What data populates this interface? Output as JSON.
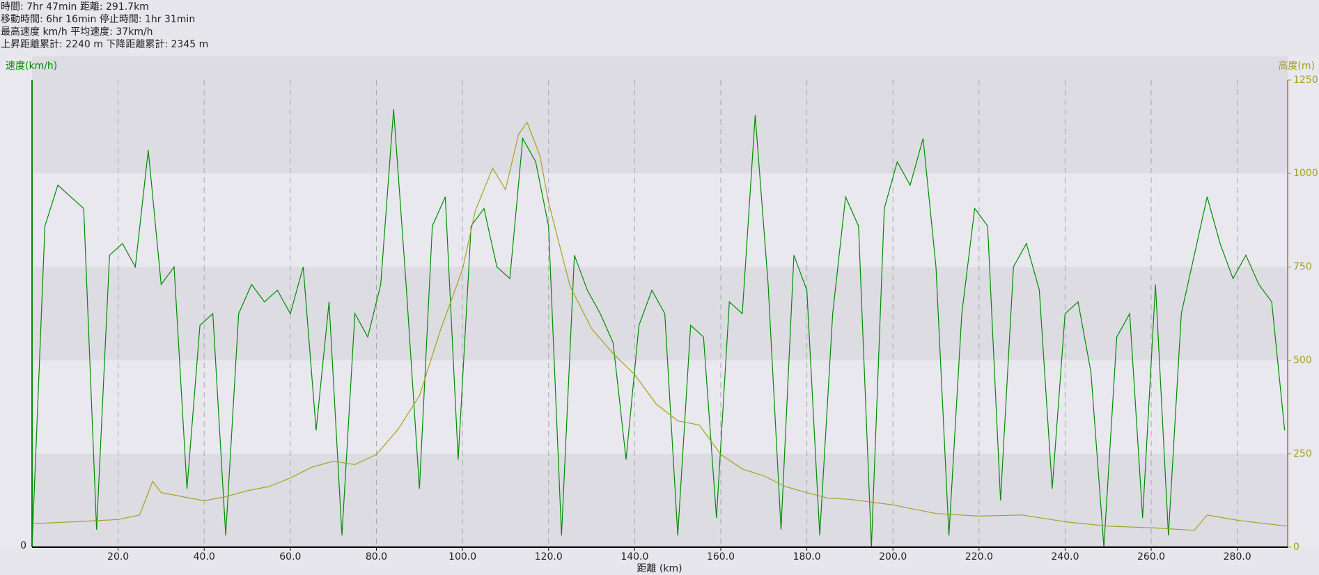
{
  "header": {
    "lines": [
      "時間: 7hr 47min  距離: 291.7km",
      "移動時間: 6hr 16min  停止時間: 1hr 31min",
      "最高速度     km/h  平均速度: 37km/h",
      "上昇距離累計: 2240 m  下降距離累計: 2345 m"
    ]
  },
  "chart_data": {
    "type": "line",
    "ylabel": "速度(km/h)",
    "y2label": "高度(m)",
    "xlabel": "距離 (km)",
    "xlim": [
      0,
      291.7
    ],
    "xticks": [
      {
        "value": 20,
        "label": "20.0"
      },
      {
        "value": 40,
        "label": "40.0"
      },
      {
        "value": 60,
        "label": "60.0"
      },
      {
        "value": 80,
        "label": "80.0"
      },
      {
        "value": 100,
        "label": "100.0"
      },
      {
        "value": 120,
        "label": "120.0"
      },
      {
        "value": 140,
        "label": "140.0"
      },
      {
        "value": 160,
        "label": "160.0"
      },
      {
        "value": 180,
        "label": "180.0"
      },
      {
        "value": 200,
        "label": "200.0"
      },
      {
        "value": 220,
        "label": "220.0"
      },
      {
        "value": 240,
        "label": "240.0"
      },
      {
        "value": 260,
        "label": "260.0"
      },
      {
        "value": 280,
        "label": "280.0"
      }
    ],
    "ylim": [
      0,
      80
    ],
    "yticks": [
      0
    ],
    "y2lim": [
      0,
      1250
    ],
    "y2ticks": [
      0,
      250,
      500,
      750,
      1000,
      1250
    ],
    "grid": true,
    "series": [
      {
        "name": "速度",
        "color": "#008c00",
        "x": [
          0,
          3,
          6,
          9,
          12,
          15,
          18,
          21,
          24,
          27,
          30,
          33,
          36,
          39,
          42,
          45,
          48,
          51,
          54,
          57,
          60,
          63,
          66,
          69,
          72,
          75,
          78,
          81,
          84,
          87,
          90,
          93,
          96,
          99,
          102,
          105,
          108,
          111,
          114,
          117,
          120,
          123,
          126,
          129,
          132,
          135,
          138,
          141,
          144,
          147,
          150,
          153,
          156,
          159,
          162,
          165,
          168,
          171,
          174,
          177,
          180,
          183,
          186,
          189,
          192,
          195,
          198,
          201,
          204,
          207,
          210,
          213,
          216,
          219,
          222,
          225,
          228,
          231,
          234,
          237,
          240,
          243,
          246,
          249,
          252,
          255,
          258,
          261,
          264,
          267,
          270,
          273,
          276,
          279,
          282,
          285,
          288,
          291
        ],
        "values": [
          0,
          55,
          62,
          60,
          58,
          3,
          50,
          52,
          48,
          68,
          45,
          48,
          10,
          38,
          40,
          2,
          40,
          45,
          42,
          44,
          40,
          48,
          20,
          42,
          2,
          40,
          36,
          45,
          75,
          44,
          10,
          55,
          60,
          15,
          55,
          58,
          48,
          46,
          70,
          66,
          55,
          2,
          50,
          44,
          40,
          35,
          15,
          38,
          44,
          40,
          2,
          38,
          36,
          5,
          42,
          40,
          74,
          45,
          3,
          50,
          44,
          2,
          40,
          60,
          55,
          0,
          58,
          66,
          62,
          70,
          48,
          2,
          40,
          58,
          55,
          8,
          48,
          52,
          44,
          10,
          40,
          42,
          30,
          0,
          36,
          40,
          5,
          45,
          2,
          40,
          50,
          60,
          52,
          46,
          50,
          45,
          42,
          20
        ]
      },
      {
        "name": "高度",
        "color": "#a8a020",
        "axis": "y2",
        "x": [
          0,
          10,
          20,
          25,
          28,
          30,
          35,
          40,
          45,
          50,
          55,
          60,
          65,
          70,
          75,
          80,
          85,
          90,
          95,
          100,
          103,
          107,
          110,
          113,
          115,
          118,
          120,
          125,
          130,
          135,
          140,
          145,
          150,
          155,
          160,
          165,
          170,
          175,
          180,
          185,
          190,
          200,
          210,
          220,
          230,
          240,
          250,
          260,
          270,
          273,
          280,
          291.7
        ],
        "values": [
          63,
          68,
          74,
          86,
          176,
          146,
          135,
          124,
          135,
          151,
          162,
          185,
          214,
          230,
          221,
          248,
          315,
          405,
          585,
          743,
          901,
          1014,
          957,
          1104,
          1137,
          1047,
          923,
          698,
          585,
          518,
          462,
          383,
          338,
          327,
          248,
          209,
          191,
          162,
          146,
          131,
          128,
          113,
          90,
          83,
          86,
          68,
          56,
          52,
          45,
          86,
          72,
          56
        ]
      }
    ]
  }
}
